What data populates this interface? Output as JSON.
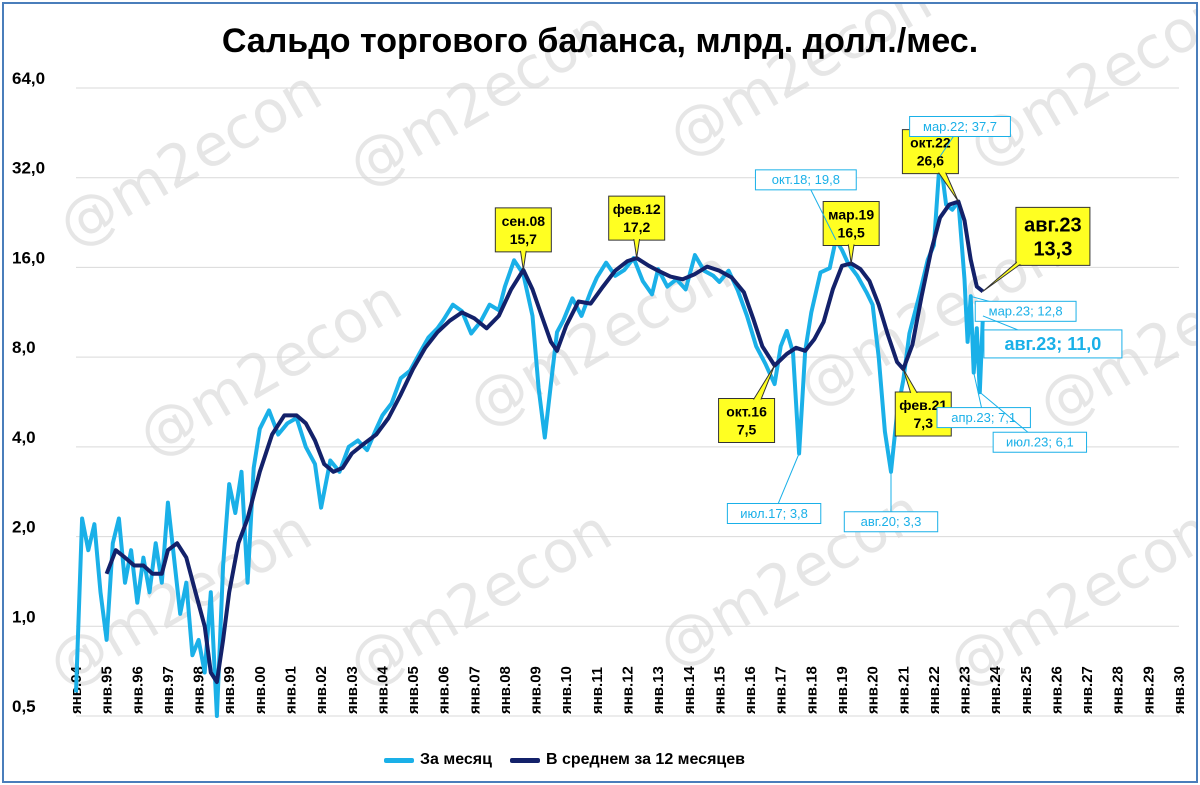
{
  "colors": {
    "monthly": "#1ab0e8",
    "average": "#13216a",
    "callout_yellow": "#ffff22",
    "callout_border": "#333333",
    "frame": "#4a7ebb",
    "grid": "#d9d9d9",
    "watermark": "#e6e6e6"
  },
  "watermarks": [
    "@m2econ",
    "@m2econ",
    "@m2econ",
    "@m2econ",
    "@m2econ",
    "@m2econ",
    "@m2econ",
    "@m2econ",
    "@m2econ",
    "@m2econ",
    "@m2econ",
    "@m2econ"
  ],
  "chart_data": {
    "type": "line",
    "title": "Сальдо торгового баланса, млрд. долл./мес.",
    "y_scale": "log2",
    "ylim": [
      0.5,
      64.0
    ],
    "y_ticks": [
      "64,0",
      "32,0",
      "16,0",
      "8,0",
      "4,0",
      "2,0",
      "1,0",
      "0,5"
    ],
    "x_ticks": [
      "янв.94",
      "янв.95",
      "янв.96",
      "янв.97",
      "янв.98",
      "янв.99",
      "янв.00",
      "янв.01",
      "янв.02",
      "янв.03",
      "янв.04",
      "янв.05",
      "янв.06",
      "янв.07",
      "янв.08",
      "янв.09",
      "янв.10",
      "янв.11",
      "янв.12",
      "янв.13",
      "янв.14",
      "янв.15",
      "янв.16",
      "янв.17",
      "янв.18",
      "янв.19",
      "янв.20",
      "янв.21",
      "янв.22",
      "янв.23",
      "янв.24",
      "янв.25",
      "янв.26",
      "янв.27",
      "янв.28",
      "янв.29",
      "янв.30"
    ],
    "xlim": [
      1994.0,
      2030.0
    ],
    "grid": "horizontal",
    "legend_position": "bottom",
    "series": [
      {
        "name": "За месяц",
        "points": [
          [
            1994.0,
            0.6
          ],
          [
            1994.2,
            2.3
          ],
          [
            1994.4,
            1.8
          ],
          [
            1994.6,
            2.2
          ],
          [
            1994.8,
            1.3
          ],
          [
            1995.0,
            0.9
          ],
          [
            1995.2,
            1.9
          ],
          [
            1995.4,
            2.3
          ],
          [
            1995.6,
            1.4
          ],
          [
            1995.8,
            1.8
          ],
          [
            1996.0,
            1.2
          ],
          [
            1996.2,
            1.7
          ],
          [
            1996.4,
            1.3
          ],
          [
            1996.6,
            1.9
          ],
          [
            1996.8,
            1.4
          ],
          [
            1997.0,
            2.6
          ],
          [
            1997.2,
            1.7
          ],
          [
            1997.4,
            1.1
          ],
          [
            1997.6,
            1.4
          ],
          [
            1997.8,
            0.8
          ],
          [
            1998.0,
            0.9
          ],
          [
            1998.2,
            0.7
          ],
          [
            1998.4,
            1.3
          ],
          [
            1998.6,
            0.5
          ],
          [
            1998.8,
            1.6
          ],
          [
            1999.0,
            3.0
          ],
          [
            1999.2,
            2.4
          ],
          [
            1999.4,
            3.3
          ],
          [
            1999.6,
            1.4
          ],
          [
            1999.8,
            3.4
          ],
          [
            2000.0,
            4.6
          ],
          [
            2000.3,
            5.3
          ],
          [
            2000.6,
            4.4
          ],
          [
            2000.9,
            4.8
          ],
          [
            2001.2,
            5.0
          ],
          [
            2001.5,
            4.0
          ],
          [
            2001.8,
            3.5
          ],
          [
            2002.0,
            2.5
          ],
          [
            2002.3,
            3.6
          ],
          [
            2002.6,
            3.3
          ],
          [
            2002.9,
            4.0
          ],
          [
            2003.2,
            4.2
          ],
          [
            2003.5,
            3.9
          ],
          [
            2003.8,
            4.6
          ],
          [
            2004.0,
            5.1
          ],
          [
            2004.3,
            5.6
          ],
          [
            2004.6,
            6.8
          ],
          [
            2004.9,
            7.2
          ],
          [
            2005.2,
            8.2
          ],
          [
            2005.5,
            9.3
          ],
          [
            2005.8,
            10.0
          ],
          [
            2006.0,
            10.7
          ],
          [
            2006.3,
            12.0
          ],
          [
            2006.6,
            11.4
          ],
          [
            2006.9,
            9.6
          ],
          [
            2007.2,
            10.5
          ],
          [
            2007.5,
            12.0
          ],
          [
            2007.8,
            11.5
          ],
          [
            2008.0,
            13.8
          ],
          [
            2008.3,
            16.9
          ],
          [
            2008.6,
            15.2
          ],
          [
            2008.9,
            11.0
          ],
          [
            2009.1,
            6.3
          ],
          [
            2009.3,
            4.3
          ],
          [
            2009.5,
            6.5
          ],
          [
            2009.7,
            9.7
          ],
          [
            2009.9,
            10.6
          ],
          [
            2010.2,
            12.6
          ],
          [
            2010.5,
            11.0
          ],
          [
            2010.8,
            13.3
          ],
          [
            2011.0,
            14.8
          ],
          [
            2011.3,
            16.6
          ],
          [
            2011.6,
            15.0
          ],
          [
            2011.9,
            15.7
          ],
          [
            2012.2,
            17.2
          ],
          [
            2012.5,
            14.4
          ],
          [
            2012.8,
            13.0
          ],
          [
            2013.0,
            15.8
          ],
          [
            2013.3,
            13.8
          ],
          [
            2013.6,
            14.6
          ],
          [
            2013.9,
            13.5
          ],
          [
            2014.2,
            17.6
          ],
          [
            2014.5,
            15.6
          ],
          [
            2014.8,
            15.0
          ],
          [
            2015.0,
            14.3
          ],
          [
            2015.3,
            15.6
          ],
          [
            2015.6,
            13.4
          ],
          [
            2015.9,
            11.0
          ],
          [
            2016.2,
            8.7
          ],
          [
            2016.5,
            7.6
          ],
          [
            2016.8,
            6.5
          ],
          [
            2017.0,
            8.7
          ],
          [
            2017.2,
            9.8
          ],
          [
            2017.4,
            8.3
          ],
          [
            2017.6,
            3.8
          ],
          [
            2017.8,
            8.4
          ],
          [
            2018.0,
            11.3
          ],
          [
            2018.3,
            15.4
          ],
          [
            2018.6,
            15.9
          ],
          [
            2018.8,
            19.8
          ],
          [
            2019.0,
            18.3
          ],
          [
            2019.2,
            16.5
          ],
          [
            2019.5,
            15.0
          ],
          [
            2019.8,
            13.2
          ],
          [
            2020.0,
            12.0
          ],
          [
            2020.2,
            8.0
          ],
          [
            2020.4,
            4.5
          ],
          [
            2020.6,
            3.3
          ],
          [
            2020.8,
            5.2
          ],
          [
            2021.0,
            6.7
          ],
          [
            2021.2,
            9.6
          ],
          [
            2021.5,
            12.6
          ],
          [
            2021.8,
            17.0
          ],
          [
            2022.0,
            19.0
          ],
          [
            2022.2,
            37.7
          ],
          [
            2022.4,
            26.0
          ],
          [
            2022.6,
            25.0
          ],
          [
            2022.8,
            26.6
          ],
          [
            2023.0,
            14.6
          ],
          [
            2023.1,
            9.0
          ],
          [
            2023.2,
            12.8
          ],
          [
            2023.3,
            7.1
          ],
          [
            2023.4,
            10.0
          ],
          [
            2023.5,
            6.1
          ],
          [
            2023.6,
            11.0
          ]
        ]
      },
      {
        "name": "В среднем за 12 месяцев",
        "points": [
          [
            1995.0,
            1.5
          ],
          [
            1995.3,
            1.8
          ],
          [
            1995.6,
            1.7
          ],
          [
            1995.9,
            1.6
          ],
          [
            1996.2,
            1.6
          ],
          [
            1996.5,
            1.5
          ],
          [
            1996.8,
            1.5
          ],
          [
            1997.0,
            1.8
          ],
          [
            1997.3,
            1.9
          ],
          [
            1997.6,
            1.7
          ],
          [
            1997.9,
            1.3
          ],
          [
            1998.2,
            1.0
          ],
          [
            1998.4,
            0.7
          ],
          [
            1998.6,
            0.65
          ],
          [
            1998.8,
            0.9
          ],
          [
            1999.0,
            1.3
          ],
          [
            1999.3,
            1.9
          ],
          [
            1999.6,
            2.3
          ],
          [
            2000.0,
            3.3
          ],
          [
            2000.4,
            4.4
          ],
          [
            2000.8,
            5.1
          ],
          [
            2001.2,
            5.1
          ],
          [
            2001.5,
            4.8
          ],
          [
            2001.8,
            4.2
          ],
          [
            2002.1,
            3.5
          ],
          [
            2002.4,
            3.3
          ],
          [
            2002.7,
            3.4
          ],
          [
            2003.0,
            3.8
          ],
          [
            2003.4,
            4.1
          ],
          [
            2003.8,
            4.4
          ],
          [
            2004.2,
            5.0
          ],
          [
            2004.6,
            6.0
          ],
          [
            2005.0,
            7.3
          ],
          [
            2005.4,
            8.6
          ],
          [
            2005.8,
            9.7
          ],
          [
            2006.2,
            10.6
          ],
          [
            2006.6,
            11.3
          ],
          [
            2007.0,
            10.8
          ],
          [
            2007.4,
            10.0
          ],
          [
            2007.8,
            11.0
          ],
          [
            2008.2,
            13.5
          ],
          [
            2008.6,
            15.7
          ],
          [
            2008.9,
            13.5
          ],
          [
            2009.2,
            11.0
          ],
          [
            2009.5,
            9.0
          ],
          [
            2009.7,
            8.4
          ],
          [
            2010.0,
            10.2
          ],
          [
            2010.4,
            12.3
          ],
          [
            2010.8,
            12.1
          ],
          [
            2011.2,
            13.8
          ],
          [
            2011.6,
            15.6
          ],
          [
            2012.0,
            16.8
          ],
          [
            2012.3,
            17.2
          ],
          [
            2012.7,
            16.2
          ],
          [
            2013.0,
            15.6
          ],
          [
            2013.4,
            14.9
          ],
          [
            2013.8,
            14.6
          ],
          [
            2014.2,
            15.2
          ],
          [
            2014.6,
            16.1
          ],
          [
            2015.0,
            15.6
          ],
          [
            2015.4,
            14.8
          ],
          [
            2015.8,
            13.2
          ],
          [
            2016.1,
            10.8
          ],
          [
            2016.4,
            8.7
          ],
          [
            2016.8,
            7.5
          ],
          [
            2017.2,
            8.2
          ],
          [
            2017.5,
            8.6
          ],
          [
            2017.8,
            8.4
          ],
          [
            2018.1,
            9.2
          ],
          [
            2018.4,
            10.5
          ],
          [
            2018.7,
            13.5
          ],
          [
            2019.0,
            16.2
          ],
          [
            2019.3,
            16.5
          ],
          [
            2019.6,
            15.8
          ],
          [
            2019.9,
            14.4
          ],
          [
            2020.2,
            12.0
          ],
          [
            2020.5,
            9.5
          ],
          [
            2020.8,
            7.7
          ],
          [
            2021.0,
            7.3
          ],
          [
            2021.3,
            8.8
          ],
          [
            2021.6,
            12.8
          ],
          [
            2021.9,
            18.0
          ],
          [
            2022.2,
            23.5
          ],
          [
            2022.5,
            26.0
          ],
          [
            2022.8,
            26.6
          ],
          [
            2023.0,
            23.0
          ],
          [
            2023.2,
            17.0
          ],
          [
            2023.4,
            13.8
          ],
          [
            2023.6,
            13.3
          ]
        ]
      }
    ],
    "callouts_yellow": [
      {
        "text": "сен.08\n15,7",
        "x": 2008.6,
        "y": 15.7
      },
      {
        "text": "фев.12\n17,2",
        "x": 2012.3,
        "y": 17.2
      },
      {
        "text": "мар.19\n16,5",
        "x": 2019.3,
        "y": 16.5
      },
      {
        "text": "окт.22\n26,6",
        "x": 2022.8,
        "y": 26.6
      },
      {
        "text": "окт.16\n7,5",
        "x": 2016.8,
        "y": 7.5
      },
      {
        "text": "фев.21\n7,3",
        "x": 2021.0,
        "y": 7.3
      },
      {
        "text": "авг.23\n13,3",
        "x": 2023.6,
        "y": 13.3
      }
    ],
    "callouts_blue": [
      {
        "text": "мар.22; 37,7",
        "x": 2022.2,
        "y": 37.7
      },
      {
        "text": "окт.18; 19,8",
        "x": 2018.8,
        "y": 19.8
      },
      {
        "text": "мар.23; 12,8",
        "x": 2023.2,
        "y": 12.8
      },
      {
        "text": "авг.23; 11,0",
        "x": 2023.6,
        "y": 11.0
      },
      {
        "text": "апр.23; 7,1",
        "x": 2023.3,
        "y": 7.1
      },
      {
        "text": "июл.23; 6,1",
        "x": 2023.5,
        "y": 6.1
      },
      {
        "text": "июл.17; 3,8",
        "x": 2017.6,
        "y": 3.8
      },
      {
        "text": "авг.20; 3,3",
        "x": 2020.6,
        "y": 3.3
      }
    ]
  }
}
